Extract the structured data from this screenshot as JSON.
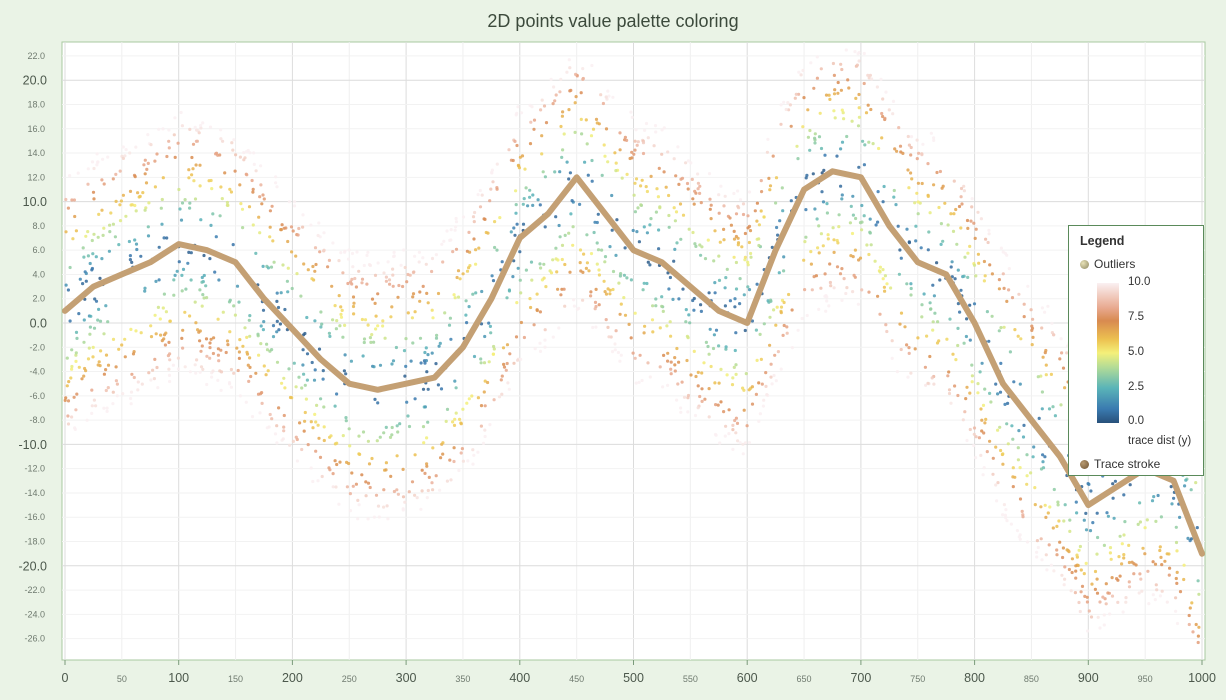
{
  "title": "2D points value palette coloring",
  "legend": {
    "heading": "Legend",
    "outliers_label": "Outliers",
    "palette_name": "trace dist (y)",
    "palette_ticks": [
      "10.0",
      "7.5",
      "5.0",
      "2.5",
      "0.0"
    ],
    "stroke_label": "Trace stroke"
  },
  "chart_data": {
    "type": "scatter",
    "title": "2D points value palette coloring",
    "xlim": [
      0,
      1000
    ],
    "ylim": [
      -27,
      23
    ],
    "x_ticks_major": [
      "0",
      "100",
      "200",
      "300",
      "400",
      "500",
      "600",
      "700",
      "800",
      "900",
      "1000"
    ],
    "x_ticks_minor": [
      "50",
      "150",
      "250",
      "350",
      "450",
      "550",
      "650",
      "750",
      "850",
      "950"
    ],
    "y_ticks_major": [
      "20.0",
      "10.0",
      "0.0",
      "-10.0",
      "-20.0"
    ],
    "y_ticks_minor": [
      "22.0",
      "18.0",
      "16.0",
      "14.0",
      "12.0",
      "8.0",
      "6.0",
      "4.0",
      "2.0",
      "-2.0",
      "-4.0",
      "-6.0",
      "-8.0",
      "-12.0",
      "-14.0",
      "-16.0",
      "-18.0",
      "-22.0",
      "-24.0",
      "-26.0"
    ],
    "grid": true,
    "legend_position": "right",
    "palette": {
      "name": "trace dist (y)",
      "range": [
        0,
        10
      ],
      "stops": [
        {
          "value": 0.0,
          "color": "#28507a"
        },
        {
          "value": 1.5,
          "color": "#3a7ab0"
        },
        {
          "value": 2.5,
          "color": "#5ab4b8"
        },
        {
          "value": 4.0,
          "color": "#b4dc96"
        },
        {
          "value": 5.0,
          "color": "#f4f07a"
        },
        {
          "value": 6.0,
          "color": "#ecc050"
        },
        {
          "value": 7.5,
          "color": "#d88a50"
        },
        {
          "value": 8.5,
          "color": "#e8a88e"
        },
        {
          "value": 10.0,
          "color": "#faf0f2"
        }
      ]
    },
    "series": [
      {
        "name": "Trace stroke",
        "color": "#c4a074",
        "x": [
          0,
          25,
          50,
          75,
          100,
          125,
          150,
          175,
          200,
          225,
          250,
          275,
          300,
          325,
          350,
          375,
          400,
          425,
          450,
          475,
          500,
          525,
          550,
          575,
          600,
          625,
          650,
          675,
          700,
          725,
          750,
          775,
          800,
          825,
          850,
          875,
          900,
          925,
          950,
          975,
          1000
        ],
        "y": [
          1,
          3,
          4,
          5,
          6.5,
          6,
          5,
          2,
          -0.5,
          -3,
          -5,
          -5.5,
          -5,
          -4.5,
          -2,
          2,
          7,
          9,
          12,
          9,
          6,
          5,
          3,
          1,
          0,
          6,
          11,
          12.5,
          12,
          8,
          5,
          4,
          0,
          -5,
          -8,
          -11,
          -15,
          -13.5,
          -12,
          -13,
          -19
        ]
      },
      {
        "name": "Outliers",
        "color": "#b8b08a",
        "x": [],
        "y": []
      }
    ]
  }
}
